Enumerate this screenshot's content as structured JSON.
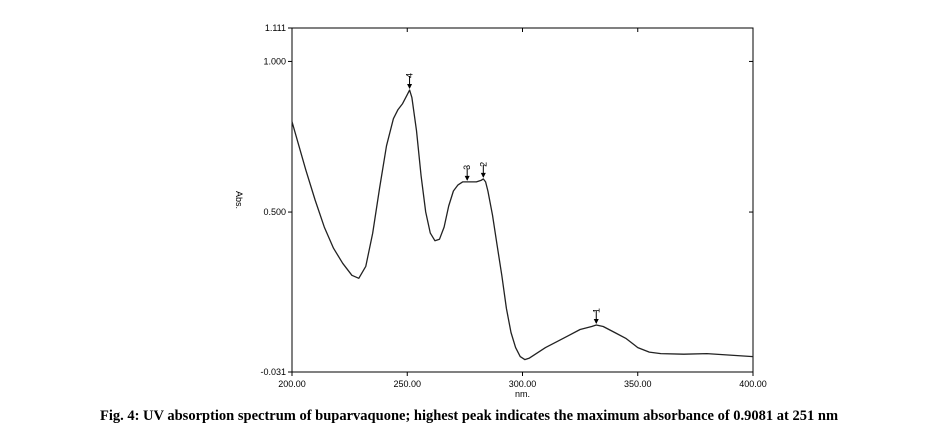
{
  "caption": "Fig. 4: UV absorption spectrum of buparvaquone; highest peak indicates the maximum absorbance of 0.9081 at 251 nm",
  "chart_data": {
    "type": "line",
    "xlabel": "nm.",
    "ylabel": "Abs.",
    "xlim": [
      200,
      400
    ],
    "ylim": [
      -0.031,
      1.111
    ],
    "x_ticks": [
      {
        "value": 200,
        "label": "200.00"
      },
      {
        "value": 250,
        "label": "250.00"
      },
      {
        "value": 300,
        "label": "300.00"
      },
      {
        "value": 350,
        "label": "350.00"
      },
      {
        "value": 400,
        "label": "400.00"
      }
    ],
    "y_ticks": [
      {
        "value": -0.031,
        "label": "-0.031"
      },
      {
        "value": 0.5,
        "label": "0.500"
      },
      {
        "value": 1.0,
        "label": "1.000"
      },
      {
        "value": 1.111,
        "label": "1.111"
      }
    ],
    "grid": false,
    "series": [
      {
        "x": [
          200,
          203,
          206,
          210,
          214,
          218,
          222,
          226,
          229,
          232,
          235,
          238,
          241,
          244,
          246,
          248,
          250,
          251,
          252,
          254,
          256,
          258,
          260,
          262,
          264,
          266,
          268,
          270,
          272,
          274,
          276,
          278,
          280,
          282,
          283,
          284,
          285,
          287,
          289,
          291,
          293,
          295,
          297,
          299,
          301,
          303,
          306,
          310,
          315,
          320,
          325,
          330,
          332,
          335,
          340,
          345,
          350,
          355,
          360,
          370,
          380,
          390,
          400
        ],
        "y": [
          0.8,
          0.72,
          0.64,
          0.54,
          0.45,
          0.38,
          0.33,
          0.29,
          0.28,
          0.32,
          0.43,
          0.58,
          0.72,
          0.81,
          0.84,
          0.86,
          0.89,
          0.905,
          0.88,
          0.77,
          0.62,
          0.5,
          0.43,
          0.405,
          0.41,
          0.45,
          0.52,
          0.57,
          0.59,
          0.6,
          0.6,
          0.6,
          0.6,
          0.605,
          0.61,
          0.6,
          0.57,
          0.49,
          0.39,
          0.29,
          0.18,
          0.1,
          0.05,
          0.02,
          0.01,
          0.015,
          0.03,
          0.05,
          0.07,
          0.09,
          0.11,
          0.12,
          0.125,
          0.12,
          0.1,
          0.08,
          0.05,
          0.035,
          0.03,
          0.028,
          0.03,
          0.025,
          0.02
        ]
      }
    ],
    "peaks": [
      {
        "label": "1",
        "x": 332,
        "y": 0.125
      },
      {
        "label": "2",
        "x": 283,
        "y": 0.61
      },
      {
        "label": "3",
        "x": 276,
        "y": 0.6
      },
      {
        "label": "4",
        "x": 251,
        "y": 0.905
      }
    ]
  }
}
